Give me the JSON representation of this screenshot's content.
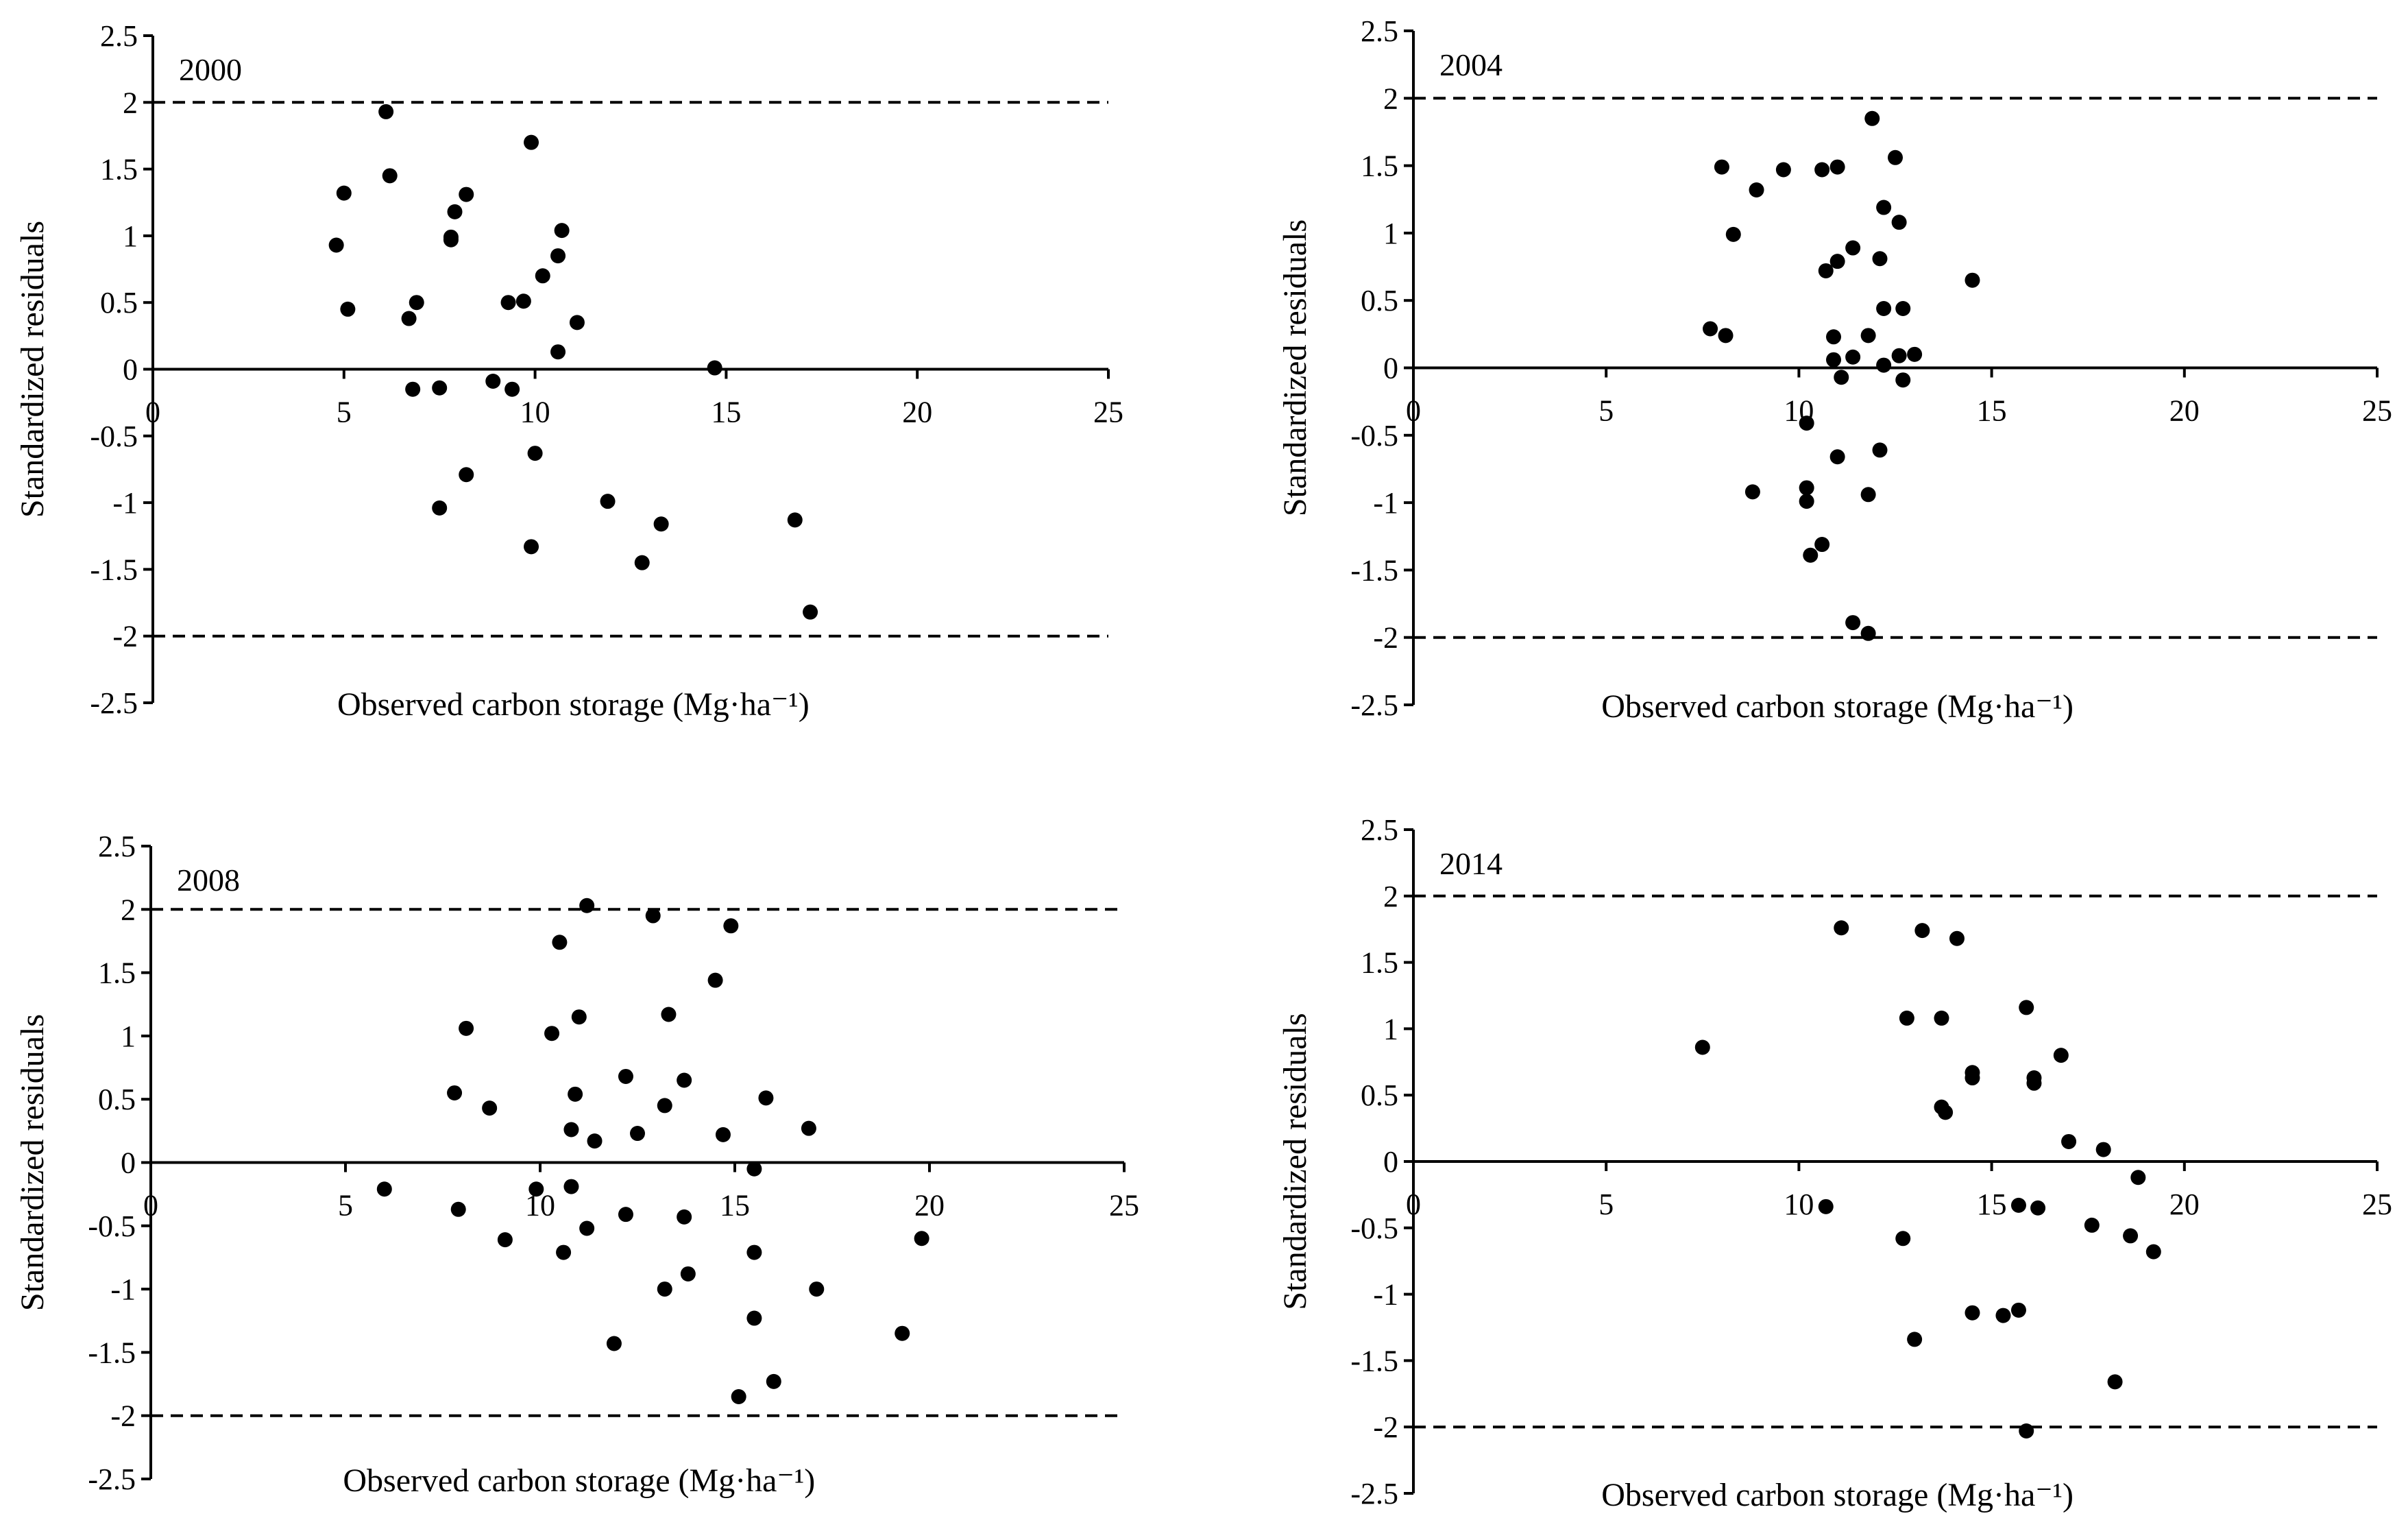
{
  "chart_data": [
    {
      "type": "scatter",
      "panel_label": "2000",
      "xlabel": "Observed carbon storage (Mg·ha⁻¹)",
      "ylabel": "Standardized residuals",
      "xlim": [
        0,
        25
      ],
      "ylim": [
        -2.5,
        2.5
      ],
      "xticks": [
        0,
        5,
        10,
        15,
        20,
        25
      ],
      "yticks": [
        -2.5,
        -2,
        -1.5,
        -1,
        -0.5,
        0,
        0.5,
        1,
        1.5,
        2,
        2.5
      ],
      "reference_lines": [
        2,
        -2
      ],
      "points": [
        [
          4.8,
          0.93
        ],
        [
          5.0,
          1.32
        ],
        [
          5.1,
          0.45
        ],
        [
          6.1,
          1.93
        ],
        [
          6.2,
          1.45
        ],
        [
          6.7,
          0.38
        ],
        [
          6.8,
          -0.15
        ],
        [
          6.9,
          0.5
        ],
        [
          7.5,
          -0.14
        ],
        [
          7.5,
          -1.04
        ],
        [
          7.8,
          0.97
        ],
        [
          7.8,
          0.99
        ],
        [
          7.9,
          1.18
        ],
        [
          8.2,
          -0.79
        ],
        [
          8.2,
          1.31
        ],
        [
          8.9,
          -0.09
        ],
        [
          9.3,
          0.5
        ],
        [
          9.4,
          -0.15
        ],
        [
          9.7,
          0.51
        ],
        [
          9.9,
          -1.33
        ],
        [
          9.9,
          1.7
        ],
        [
          10.0,
          -0.63
        ],
        [
          10.2,
          0.7
        ],
        [
          10.6,
          0.85
        ],
        [
          10.6,
          0.13
        ],
        [
          10.7,
          1.04
        ],
        [
          11.1,
          0.35
        ],
        [
          11.9,
          -0.99
        ],
        [
          12.8,
          -1.45
        ],
        [
          13.3,
          -1.16
        ],
        [
          14.7,
          0.01
        ],
        [
          16.8,
          -1.13
        ],
        [
          17.2,
          -1.82
        ]
      ]
    },
    {
      "type": "scatter",
      "panel_label": "2004",
      "xlabel": "Observed carbon storage (Mg·ha⁻¹)",
      "ylabel": "Standardized residuals",
      "xlim": [
        0,
        25
      ],
      "ylim": [
        -2.5,
        2.5
      ],
      "xticks": [
        0,
        5,
        10,
        15,
        20,
        25
      ],
      "yticks": [
        -2.5,
        -2,
        -1.5,
        -1,
        -0.5,
        0,
        0.5,
        1,
        1.5,
        2,
        2.5
      ],
      "reference_lines": [
        2,
        -2
      ],
      "points": [
        [
          7.7,
          0.29
        ],
        [
          8.0,
          1.49
        ],
        [
          8.1,
          0.24
        ],
        [
          8.3,
          0.99
        ],
        [
          8.8,
          -0.92
        ],
        [
          8.9,
          1.32
        ],
        [
          9.6,
          1.47
        ],
        [
          10.2,
          -0.41
        ],
        [
          10.2,
          -0.99
        ],
        [
          10.2,
          -0.89
        ],
        [
          10.3,
          -1.39
        ],
        [
          10.6,
          -1.31
        ],
        [
          10.6,
          1.47
        ],
        [
          10.7,
          0.72
        ],
        [
          10.9,
          0.23
        ],
        [
          10.9,
          0.06
        ],
        [
          11.0,
          0.79
        ],
        [
          11.0,
          -0.66
        ],
        [
          11.0,
          1.49
        ],
        [
          11.1,
          -0.07
        ],
        [
          11.4,
          0.89
        ],
        [
          11.4,
          0.08
        ],
        [
          11.4,
          -1.89
        ],
        [
          11.8,
          -0.94
        ],
        [
          11.8,
          0.24
        ],
        [
          11.8,
          -1.97
        ],
        [
          11.9,
          1.85
        ],
        [
          12.1,
          0.81
        ],
        [
          12.1,
          -0.61
        ],
        [
          12.2,
          1.19
        ],
        [
          12.2,
          0.44
        ],
        [
          12.2,
          0.02
        ],
        [
          12.5,
          1.56
        ],
        [
          12.6,
          1.08
        ],
        [
          12.6,
          0.09
        ],
        [
          12.7,
          -0.09
        ],
        [
          12.7,
          0.44
        ],
        [
          13.0,
          0.1
        ],
        [
          14.5,
          0.65
        ]
      ]
    },
    {
      "type": "scatter",
      "panel_label": "2008",
      "xlabel": "Observed carbon storage (Mg·ha⁻¹)",
      "ylabel": "Standardized residuals",
      "xlim": [
        0,
        25
      ],
      "ylim": [
        -2.5,
        2.5
      ],
      "xticks": [
        0,
        5,
        10,
        15,
        20,
        25
      ],
      "yticks": [
        -2.5,
        -2,
        -1.5,
        -1,
        -0.5,
        0,
        0.5,
        1,
        1.5,
        2,
        2.5
      ],
      "reference_lines": [
        2,
        -2
      ],
      "points": [
        [
          6.0,
          -0.21
        ],
        [
          7.8,
          0.55
        ],
        [
          7.9,
          -0.37
        ],
        [
          8.1,
          1.06
        ],
        [
          8.7,
          0.43
        ],
        [
          9.1,
          -0.61
        ],
        [
          9.9,
          -0.21
        ],
        [
          10.3,
          1.02
        ],
        [
          10.5,
          1.74
        ],
        [
          10.6,
          -0.71
        ],
        [
          10.8,
          -0.19
        ],
        [
          10.8,
          0.26
        ],
        [
          10.9,
          0.54
        ],
        [
          11.0,
          1.15
        ],
        [
          11.2,
          -0.52
        ],
        [
          11.2,
          2.03
        ],
        [
          11.4,
          0.17
        ],
        [
          11.9,
          -1.43
        ],
        [
          12.2,
          -0.41
        ],
        [
          12.2,
          0.68
        ],
        [
          12.5,
          0.23
        ],
        [
          12.9,
          1.95
        ],
        [
          13.2,
          -1.0
        ],
        [
          13.2,
          0.45
        ],
        [
          13.3,
          1.17
        ],
        [
          13.7,
          0.65
        ],
        [
          13.7,
          -0.43
        ],
        [
          13.8,
          -0.88
        ],
        [
          14.5,
          1.44
        ],
        [
          14.7,
          0.22
        ],
        [
          14.9,
          1.87
        ],
        [
          15.1,
          -1.85
        ],
        [
          15.5,
          -0.05
        ],
        [
          15.5,
          -1.23
        ],
        [
          15.5,
          -0.71
        ],
        [
          15.8,
          0.51
        ],
        [
          16.0,
          -1.73
        ],
        [
          16.9,
          0.27
        ],
        [
          17.1,
          -1.0
        ],
        [
          19.3,
          -1.35
        ],
        [
          19.8,
          -0.6
        ]
      ]
    },
    {
      "type": "scatter",
      "panel_label": "2014",
      "xlabel": "Observed carbon storage (Mg·ha⁻¹)",
      "ylabel": "Standardized residuals",
      "xlim": [
        0,
        25
      ],
      "ylim": [
        -2.5,
        2.5
      ],
      "xticks": [
        0,
        5,
        10,
        15,
        20,
        25
      ],
      "yticks": [
        -2.5,
        -2,
        -1.5,
        -1,
        -0.5,
        0,
        0.5,
        1,
        1.5,
        2,
        2.5
      ],
      "reference_lines": [
        2,
        -2
      ],
      "points": [
        [
          7.5,
          0.86
        ],
        [
          10.7,
          -0.34
        ],
        [
          11.1,
          1.76
        ],
        [
          12.7,
          -0.58
        ],
        [
          12.8,
          1.08
        ],
        [
          13.0,
          -1.34
        ],
        [
          13.2,
          1.74
        ],
        [
          13.7,
          0.41
        ],
        [
          13.7,
          1.08
        ],
        [
          13.8,
          0.37
        ],
        [
          14.1,
          1.68
        ],
        [
          14.5,
          0.63
        ],
        [
          14.5,
          0.67
        ],
        [
          14.5,
          -1.14
        ],
        [
          15.3,
          -1.16
        ],
        [
          15.7,
          -0.33
        ],
        [
          15.7,
          -1.12
        ],
        [
          15.9,
          1.16
        ],
        [
          15.9,
          -2.03
        ],
        [
          16.1,
          0.63
        ],
        [
          16.1,
          0.59
        ],
        [
          16.2,
          -0.35
        ],
        [
          16.8,
          0.8
        ],
        [
          17.0,
          0.15
        ],
        [
          17.6,
          -0.48
        ],
        [
          17.9,
          0.09
        ],
        [
          18.2,
          -1.66
        ],
        [
          18.6,
          -0.56
        ],
        [
          18.8,
          -0.12
        ],
        [
          19.2,
          -0.68
        ]
      ]
    }
  ]
}
